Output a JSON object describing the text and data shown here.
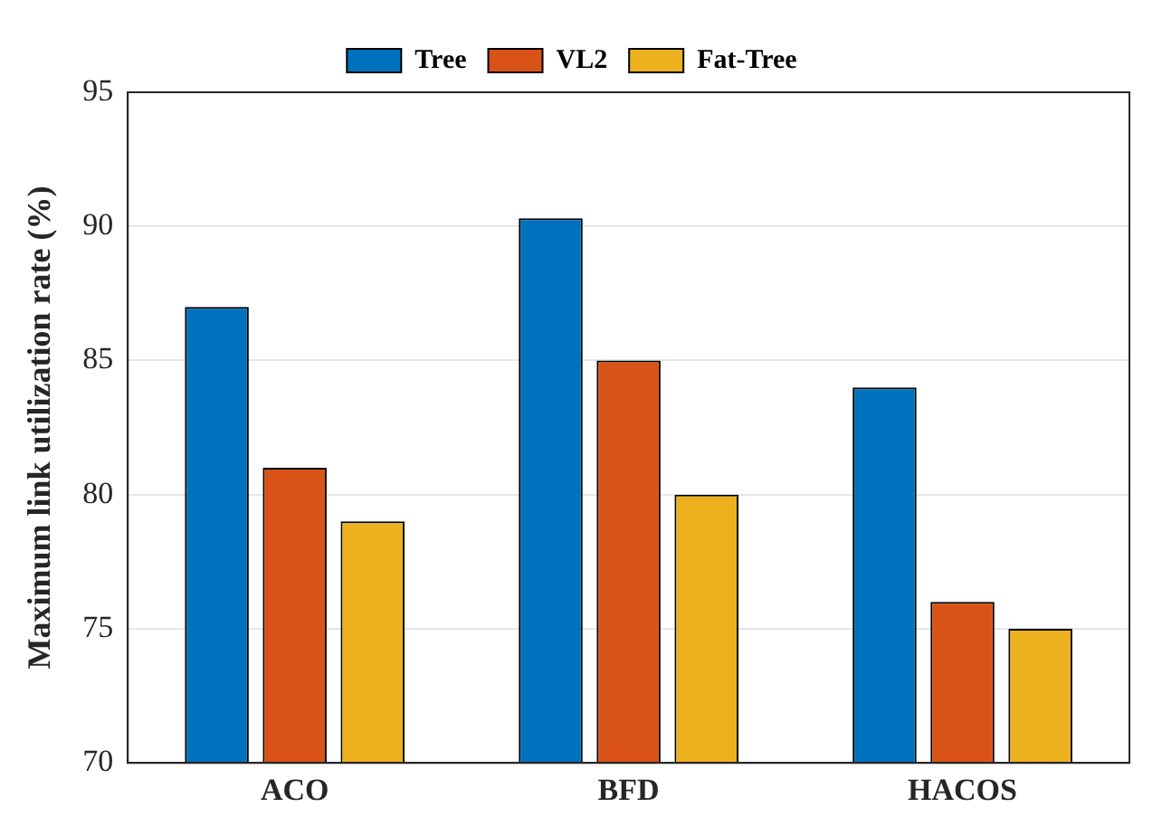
{
  "chart_data": {
    "type": "bar",
    "ylabel": "Maximum link utilization rate (%)",
    "categories": [
      "ACO",
      "BFD",
      "HACOS"
    ],
    "series": [
      {
        "name": "Tree",
        "color": "#0072bd",
        "values": [
          87,
          90.3,
          84
        ]
      },
      {
        "name": "VL2",
        "color": "#d95319",
        "values": [
          81,
          85,
          76
        ]
      },
      {
        "name": "Fat-Tree",
        "color": "#edb120",
        "values": [
          79,
          80,
          75
        ]
      }
    ],
    "ylim": [
      70,
      95
    ],
    "yticks": [
      70,
      75,
      80,
      85,
      90,
      95
    ],
    "grid": "y",
    "legend": "top"
  }
}
